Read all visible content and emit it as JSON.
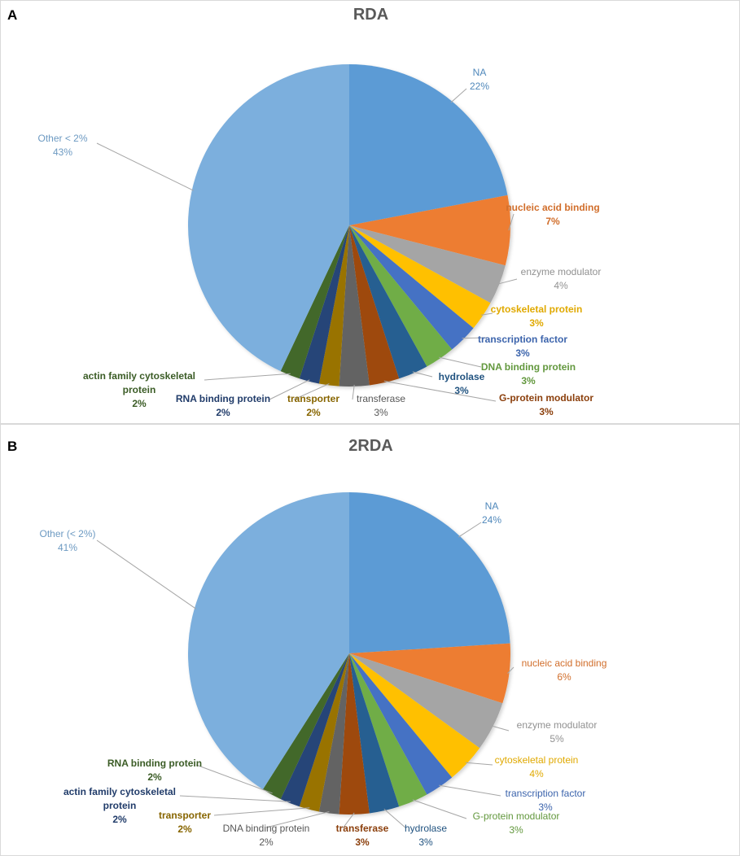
{
  "chart_data": [
    {
      "type": "pie",
      "panel": "A",
      "title": "RDA",
      "start": "top, clockwise",
      "slices": [
        {
          "label": "NA",
          "value": 22,
          "pct": "22%",
          "color": "#5b9bd5",
          "bold": false
        },
        {
          "label": "nucleic acid binding",
          "value": 7,
          "pct": "7%",
          "color": "#ed7d31",
          "bold": true
        },
        {
          "label": "enzyme modulator",
          "value": 4,
          "pct": "4%",
          "color": "#a5a5a5",
          "bold": false
        },
        {
          "label": "cytoskeletal protein",
          "value": 3,
          "pct": "3%",
          "color": "#ffc000",
          "bold": true
        },
        {
          "label": "transcription factor",
          "value": 3,
          "pct": "3%",
          "color": "#4472c4",
          "bold": true
        },
        {
          "label": "DNA binding protein",
          "value": 3,
          "pct": "3%",
          "color": "#70ad47",
          "bold": true
        },
        {
          "label": "hydrolase",
          "value": 3,
          "pct": "3%",
          "color": "#255e91",
          "bold": true
        },
        {
          "label": "G-protein modulator",
          "value": 3,
          "pct": "3%",
          "color": "#9e480e",
          "bold": true
        },
        {
          "label": "transferase",
          "value": 3,
          "pct": "3%",
          "color": "#636363",
          "bold": false
        },
        {
          "label": "transporter",
          "value": 2,
          "pct": "2%",
          "color": "#997300",
          "bold": true
        },
        {
          "label": "RNA binding protein",
          "value": 2,
          "pct": "2%",
          "color": "#264478",
          "bold": true
        },
        {
          "label": "actin family cytoskeletal protein",
          "value": 2,
          "pct": "2%",
          "color": "#43682b",
          "bold": true
        },
        {
          "label": "Other < 2%",
          "value": 43,
          "pct": "43%",
          "color": "#7cafdd",
          "bold": false
        }
      ]
    },
    {
      "type": "pie",
      "panel": "B",
      "title": "2RDA",
      "start": "top, clockwise",
      "slices": [
        {
          "label": "NA",
          "value": 24,
          "pct": "24%",
          "color": "#5b9bd5",
          "bold": false
        },
        {
          "label": "nucleic acid binding",
          "value": 6,
          "pct": "6%",
          "color": "#ed7d31",
          "bold": false
        },
        {
          "label": "enzyme modulator",
          "value": 5,
          "pct": "5%",
          "color": "#a5a5a5",
          "bold": false
        },
        {
          "label": "cytoskeletal protein",
          "value": 4,
          "pct": "4%",
          "color": "#ffc000",
          "bold": false
        },
        {
          "label": "transcription factor",
          "value": 3,
          "pct": "3%",
          "color": "#4472c4",
          "bold": false
        },
        {
          "label": "G-protein modulator",
          "value": 3,
          "pct": "3%",
          "color": "#70ad47",
          "bold": false
        },
        {
          "label": "hydrolase",
          "value": 3,
          "pct": "3%",
          "color": "#255e91",
          "bold": false
        },
        {
          "label": "transferase",
          "value": 3,
          "pct": "3%",
          "color": "#9e480e",
          "bold": true
        },
        {
          "label": "DNA binding protein",
          "value": 2,
          "pct": "2%",
          "color": "#636363",
          "bold": false
        },
        {
          "label": "transporter",
          "value": 2,
          "pct": "2%",
          "color": "#997300",
          "bold": true
        },
        {
          "label": "actin family cytoskeletal protein",
          "value": 2,
          "pct": "2%",
          "color": "#264478",
          "bold": true
        },
        {
          "label": "RNA binding protein",
          "value": 2,
          "pct": "2%",
          "color": "#43682b",
          "bold": true
        },
        {
          "label": "Other (< 2%)",
          "value": 41,
          "pct": "41%",
          "color": "#7cafdd",
          "bold": false
        }
      ]
    }
  ]
}
